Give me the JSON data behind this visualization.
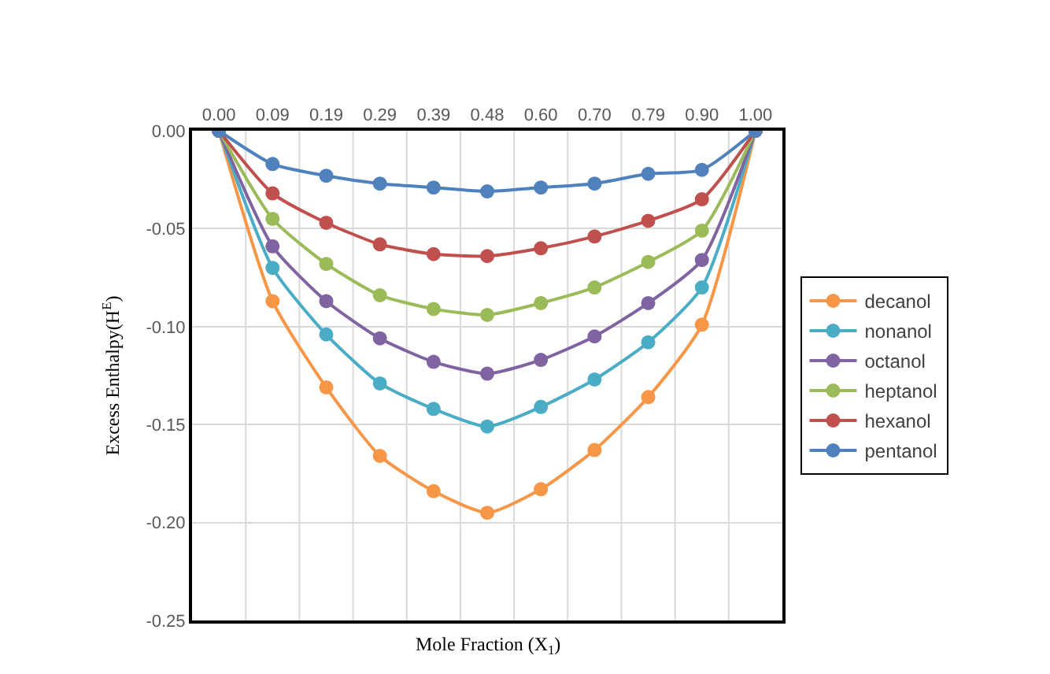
{
  "chart_data": {
    "type": "line",
    "xlabel": "Mole Fraction (X$_{1}$)",
    "ylabel": "Excess Enthalpy(H$^{E}$)",
    "categories": [
      "0.00",
      "0.09",
      "0.19",
      "0.29",
      "0.39",
      "0.48",
      "0.60",
      "0.70",
      "0.79",
      "0.90",
      "1.00"
    ],
    "series": [
      {
        "name": "decanol",
        "color": "#f79646",
        "values": [
          0,
          -0.087,
          -0.131,
          -0.166,
          -0.184,
          -0.195,
          -0.183,
          -0.163,
          -0.136,
          -0.099,
          0
        ]
      },
      {
        "name": "nonanol",
        "color": "#4bacc6",
        "values": [
          0,
          -0.07,
          -0.104,
          -0.129,
          -0.142,
          -0.151,
          -0.141,
          -0.127,
          -0.108,
          -0.08,
          0
        ]
      },
      {
        "name": "octanol",
        "color": "#8064a2",
        "values": [
          0,
          -0.059,
          -0.087,
          -0.106,
          -0.118,
          -0.124,
          -0.117,
          -0.105,
          -0.088,
          -0.066,
          0
        ]
      },
      {
        "name": "heptanol",
        "color": "#9bbb59",
        "values": [
          0,
          -0.045,
          -0.068,
          -0.084,
          -0.091,
          -0.094,
          -0.088,
          -0.08,
          -0.067,
          -0.051,
          0
        ]
      },
      {
        "name": "hexanol",
        "color": "#c0504d",
        "values": [
          0,
          -0.032,
          -0.047,
          -0.058,
          -0.063,
          -0.064,
          -0.06,
          -0.054,
          -0.046,
          -0.035,
          0
        ]
      },
      {
        "name": "pentanol",
        "color": "#4f81bd",
        "values": [
          0,
          -0.017,
          -0.023,
          -0.027,
          -0.029,
          -0.031,
          -0.029,
          -0.027,
          -0.022,
          -0.02,
          0
        ]
      }
    ],
    "ylim": [
      -0.25,
      0
    ],
    "yticks": [
      {
        "value": -0.25,
        "label": "-0.25"
      },
      {
        "value": -0.2,
        "label": "-0.20"
      },
      {
        "value": -0.15,
        "label": "-0.15"
      },
      {
        "value": -0.1,
        "label": "-0.10"
      },
      {
        "value": -0.05,
        "label": "-0.05"
      },
      {
        "value": 0,
        "label": "0.00"
      }
    ],
    "grid": true,
    "legend": "right",
    "marker": "circle",
    "line_style": "solid"
  }
}
